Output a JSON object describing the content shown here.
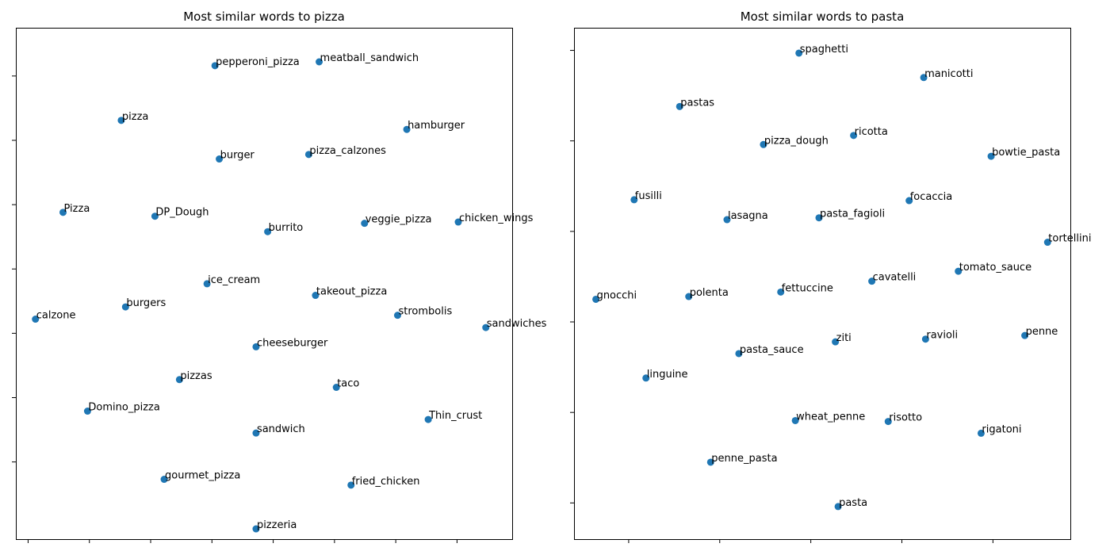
{
  "chart_data": [
    {
      "type": "scatter",
      "title": "Most similar words to pizza",
      "xlabel": "",
      "ylabel": "",
      "xlim": [
        -0.2,
        7.9
      ],
      "ylim": [
        -1.2,
        6.75
      ],
      "x_ticks": [
        0,
        1,
        2,
        3,
        4,
        5,
        6,
        7
      ],
      "y_ticks": [
        0,
        1,
        2,
        3,
        4,
        5,
        6,
        7
      ],
      "tick_labels_visible": false,
      "grid": false,
      "color": "#1f77b4",
      "points": [
        {
          "label": "pepperoni_pizza",
          "x": 3.05,
          "y": 6.16
        },
        {
          "label": "meatball_sandwich",
          "x": 4.75,
          "y": 6.22
        },
        {
          "label": "pizza",
          "x": 1.52,
          "y": 5.31
        },
        {
          "label": "hamburger",
          "x": 6.18,
          "y": 5.17
        },
        {
          "label": "pizza_calzones",
          "x": 4.58,
          "y": 4.78
        },
        {
          "label": "burger",
          "x": 3.12,
          "y": 4.71
        },
        {
          "label": "Pizza",
          "x": 0.57,
          "y": 3.88
        },
        {
          "label": "DP_Dough",
          "x": 2.07,
          "y": 3.82
        },
        {
          "label": "burrito",
          "x": 3.91,
          "y": 3.58
        },
        {
          "label": "veggie_pizza",
          "x": 5.49,
          "y": 3.71
        },
        {
          "label": "chicken_wings",
          "x": 7.02,
          "y": 3.73
        },
        {
          "label": "ice_cream",
          "x": 2.92,
          "y": 2.77
        },
        {
          "label": "takeout_pizza",
          "x": 4.69,
          "y": 2.59
        },
        {
          "label": "burgers",
          "x": 1.59,
          "y": 2.41
        },
        {
          "label": "calzone",
          "x": 0.12,
          "y": 2.22
        },
        {
          "label": "strombolis",
          "x": 6.03,
          "y": 2.28
        },
        {
          "label": "sandwiches",
          "x": 7.47,
          "y": 2.09
        },
        {
          "label": "cheeseburger",
          "x": 3.72,
          "y": 1.79
        },
        {
          "label": "pizzas",
          "x": 2.47,
          "y": 1.28
        },
        {
          "label": "taco",
          "x": 5.03,
          "y": 1.16
        },
        {
          "label": "Domino_pizza",
          "x": 0.97,
          "y": 0.79
        },
        {
          "label": "Thin_crust",
          "x": 6.53,
          "y": 0.66
        },
        {
          "label": "sandwich",
          "x": 3.72,
          "y": 0.45
        },
        {
          "label": "gourmet_pizza",
          "x": 2.22,
          "y": -0.27
        },
        {
          "label": "fried_chicken",
          "x": 5.27,
          "y": -0.36
        },
        {
          "label": "pizzeria",
          "x": 3.72,
          "y": -1.04
        }
      ]
    },
    {
      "type": "scatter",
      "title": "Most similar words to pasta",
      "xlabel": "",
      "ylabel": "",
      "xlim": [
        -0.6,
        4.85
      ],
      "ylim": [
        -0.4,
        5.25
      ],
      "x_ticks": [
        0,
        1,
        2,
        3,
        4
      ],
      "y_ticks": [
        0,
        1,
        2,
        3,
        4,
        5
      ],
      "tick_labels_visible": false,
      "grid": false,
      "color": "#1f77b4",
      "points": [
        {
          "label": "spaghetti",
          "x": 1.87,
          "y": 4.97
        },
        {
          "label": "manicotti",
          "x": 3.24,
          "y": 4.7
        },
        {
          "label": "pastas",
          "x": 0.56,
          "y": 4.38
        },
        {
          "label": "ricotta",
          "x": 2.47,
          "y": 4.06
        },
        {
          "label": "pizza_dough",
          "x": 1.48,
          "y": 3.96
        },
        {
          "label": "bowtie_pasta",
          "x": 3.98,
          "y": 3.83
        },
        {
          "label": "fusilli",
          "x": 0.06,
          "y": 3.35
        },
        {
          "label": "focaccia",
          "x": 3.08,
          "y": 3.34
        },
        {
          "label": "lasagna",
          "x": 1.08,
          "y": 3.13
        },
        {
          "label": "pasta_fagioli",
          "x": 2.09,
          "y": 3.15
        },
        {
          "label": "tortellini",
          "x": 4.6,
          "y": 2.88
        },
        {
          "label": "tomato_sauce",
          "x": 3.62,
          "y": 2.56
        },
        {
          "label": "cavatelli",
          "x": 2.67,
          "y": 2.45
        },
        {
          "label": "fettuccine",
          "x": 1.67,
          "y": 2.33
        },
        {
          "label": "polenta",
          "x": 0.66,
          "y": 2.28
        },
        {
          "label": "gnocchi",
          "x": -0.36,
          "y": 2.25
        },
        {
          "label": "ziti",
          "x": 2.27,
          "y": 1.78
        },
        {
          "label": "ravioli",
          "x": 3.26,
          "y": 1.81
        },
        {
          "label": "penne",
          "x": 4.35,
          "y": 1.85
        },
        {
          "label": "pasta_sauce",
          "x": 1.21,
          "y": 1.65
        },
        {
          "label": "linguine",
          "x": 0.19,
          "y": 1.38
        },
        {
          "label": "wheat_penne",
          "x": 1.83,
          "y": 0.91
        },
        {
          "label": "risotto",
          "x": 2.85,
          "y": 0.9
        },
        {
          "label": "rigatoni",
          "x": 3.87,
          "y": 0.77
        },
        {
          "label": "penne_pasta",
          "x": 0.9,
          "y": 0.45
        },
        {
          "label": "pasta",
          "x": 2.3,
          "y": -0.04
        }
      ]
    }
  ]
}
